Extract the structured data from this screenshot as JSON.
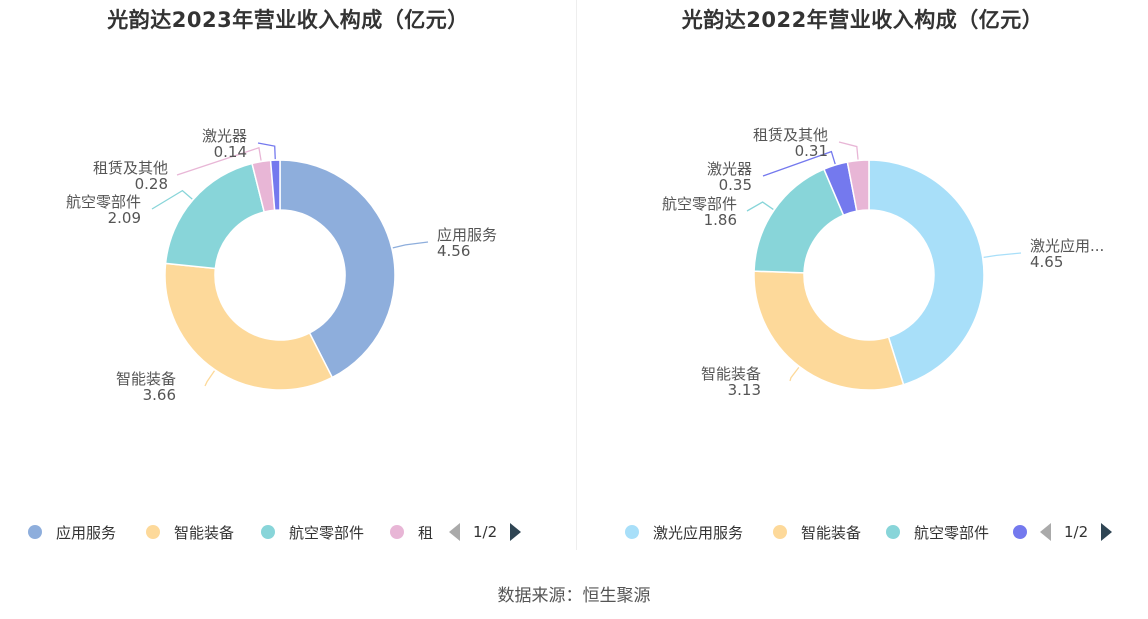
{
  "source": "数据来源：恒生聚源",
  "chart_data": [
    {
      "type": "pie",
      "title": "光韵达2023年营业收入构成（亿元）",
      "slices": [
        {
          "label": "应用服务",
          "value": 4.56,
          "color": "#8eaedc"
        },
        {
          "label": "智能装备",
          "value": 3.66,
          "color": "#fdd99a"
        },
        {
          "label": "航空零部件",
          "value": 2.09,
          "color": "#88d5d9"
        },
        {
          "label": "租赁及其他",
          "value": 0.28,
          "color": "#e8b6d6"
        },
        {
          "label": "激光器",
          "value": 0.14,
          "color": "#7479ee"
        }
      ],
      "legend": {
        "position": "bottom",
        "items": [
          "应用服务",
          "智能装备",
          "航空零部件",
          "租"
        ],
        "page": "1/2"
      }
    },
    {
      "type": "pie",
      "title": "光韵达2022年营业收入构成（亿元）",
      "slices": [
        {
          "label": "激光应用...",
          "value": 4.65,
          "color": "#a8dff9"
        },
        {
          "label": "智能装备",
          "value": 3.13,
          "color": "#fdd99a"
        },
        {
          "label": "航空零部件",
          "value": 1.86,
          "color": "#88d5d9"
        },
        {
          "label": "激光器",
          "value": 0.35,
          "color": "#7479ee"
        },
        {
          "label": "租赁及其他",
          "value": 0.31,
          "color": "#e8b6d6"
        }
      ],
      "legend": {
        "position": "bottom",
        "items": [
          "激光应用服务",
          "智能装备",
          "航空零部件",
          ""
        ],
        "page": "1/2"
      }
    }
  ]
}
